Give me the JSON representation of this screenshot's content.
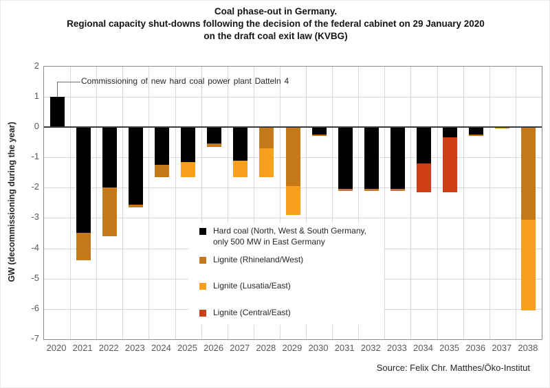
{
  "chart_data": {
    "type": "bar",
    "stacked": true,
    "title_lines": [
      "Coal phase-out in Germany.",
      "Regional capacity shut-downs following the decision of the federal cabinet on 29 January 2020",
      "on the draft coal exit law (KVBG)"
    ],
    "ylabel": "GW (decommissioning during the year)",
    "ylim": [
      -7,
      2
    ],
    "yticks": [
      2,
      1,
      0,
      -1,
      -2,
      -3,
      -4,
      -5,
      -6,
      -7
    ],
    "grid": true,
    "categories": [
      "2020",
      "2021",
      "2022",
      "2023",
      "2024",
      "2025",
      "2026",
      "2027",
      "2028",
      "2029",
      "2030",
      "2031",
      "2032",
      "2033",
      "2034",
      "2035",
      "2036",
      "2037",
      "2038"
    ],
    "series": [
      {
        "key": "hard_coal",
        "name": "Hard coal (North, West & South Germany, only 500 MW in East Germany",
        "color": "#000000",
        "values": [
          1.0,
          -3.5,
          -2.0,
          -2.55,
          -1.25,
          -1.15,
          -0.55,
          -1.1,
          0,
          0,
          -0.25,
          -2.05,
          -2.05,
          -2.05,
          -1.2,
          -0.35,
          -0.25,
          0,
          0
        ]
      },
      {
        "key": "rhineland",
        "name": "Lignite (Rhineland/West)",
        "color": "#C4791B",
        "values": [
          0,
          -0.9,
          -1.6,
          -0.1,
          -0.4,
          0,
          -0.1,
          0,
          -0.7,
          -1.95,
          -0.05,
          -0.05,
          -0.05,
          -0.05,
          0,
          0,
          -0.05,
          -0.05,
          -3.05
        ]
      },
      {
        "key": "lusatia",
        "name": "Lignite (Lusatia/East)",
        "color": "#F7A01E",
        "values": [
          0,
          0,
          0,
          0,
          0,
          -0.5,
          0,
          -0.55,
          -0.95,
          -0.95,
          0,
          0,
          0,
          0,
          0,
          0,
          0,
          0,
          -3.0
        ]
      },
      {
        "key": "central",
        "name": "Lignite (Central/East)",
        "color": "#CE3E17",
        "values": [
          0,
          0,
          0,
          0,
          0,
          0,
          0,
          0,
          0,
          0,
          0,
          0,
          0,
          0,
          -0.95,
          -1.8,
          0,
          0,
          0
        ]
      }
    ],
    "legend": {
      "position": "inside-lower-center",
      "items": [
        {
          "series": "hard_coal",
          "lines": [
            "Hard coal (North, West & South Germany,",
            "only 500 MW in East Germany"
          ]
        },
        {
          "series": "rhineland",
          "lines": [
            "Lignite (Rhineland/West)"
          ]
        },
        {
          "series": "lusatia",
          "lines": [
            "Lignite (Lusatia/East)"
          ]
        },
        {
          "series": "central",
          "lines": [
            "Lignite (Central/East)"
          ]
        }
      ]
    },
    "annotation": "Commissioning of new hard coal power plant Datteln 4",
    "source": "Source: Felix Chr. Matthes/Öko-Institut"
  }
}
